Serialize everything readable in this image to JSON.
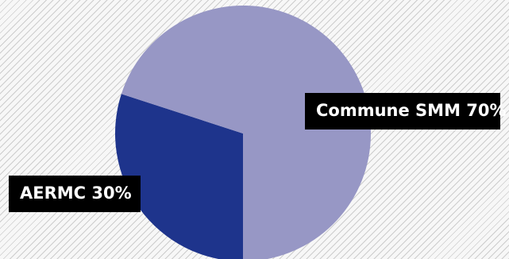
{
  "chart_data": {
    "type": "pie",
    "slices": [
      {
        "label": "Commune SMM 70%",
        "value": 70,
        "color": "#9797c5"
      },
      {
        "label": "AERMC 30%",
        "value": 30,
        "color": "#1e348c"
      }
    ],
    "legend": "none"
  }
}
